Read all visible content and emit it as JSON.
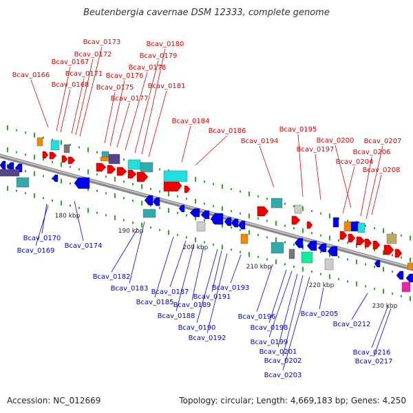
{
  "title": "Beutenbergia cavernae DSM 12333, complete genome",
  "footer": {
    "accession": "Accession: NC_012669",
    "summary": "Topology: circular; Length: 4,669,183 bp; Genes: 4,250"
  },
  "colors": {
    "forward_label": "#dd0000",
    "reverse_label": "#0000cc",
    "forward_gene": "#ee0000",
    "reverse_gene": "#0000ee",
    "backbone": "#8a8a8a",
    "tick": "#22aa22",
    "cyan": "#22dddd",
    "teal": "#33aaaa",
    "purple": "#554488",
    "orange": "#ee8800",
    "grey": "#aaaaaa",
    "green": "#11ee99",
    "khaki": "#bbaa66",
    "magenta": "#ee22aa"
  },
  "scale_labels": [
    "180 kbp",
    "190 kbp",
    "200 kbp",
    "210 kbp",
    "220 kbp",
    "230 kbp"
  ],
  "top_labels": [
    "Bcav_0166",
    "Bcav_0167",
    "Bcav_0168",
    "Bcav_0171",
    "Bcav_0172",
    "Bcav_0173",
    "Bcav_0175",
    "Bcav_0176",
    "Bcav_0177",
    "Bcav_0178",
    "Bcav_0179",
    "Bcav_0180",
    "Bcav_0181",
    "Bcav_0184",
    "Bcav_0186",
    "Bcav_0194",
    "Bcav_0195",
    "Bcav_0197",
    "Bcav_0200",
    "Bcav_0204",
    "Bcav_0206",
    "Bcav_0207",
    "Bcav_0208"
  ],
  "bottom_labels": [
    "Bcav_0170",
    "Bcav_0169",
    "Bcav_0174",
    "Bcav_0182",
    "Bcav_0183",
    "Bcav_0185",
    "Bcav_0187",
    "Bcav_0188",
    "Bcav_0189",
    "Bcav_0190",
    "Bcav_0191",
    "Bcav_0192",
    "Bcav_0193",
    "Bcav_0196",
    "Bcav_0198",
    "Bcav_0199",
    "Bcav_0201",
    "Bcav_0202",
    "Bcav_0203",
    "Bcav_0205",
    "Bcav_0212",
    "Bcav_0216",
    "Bcav_0217"
  ]
}
